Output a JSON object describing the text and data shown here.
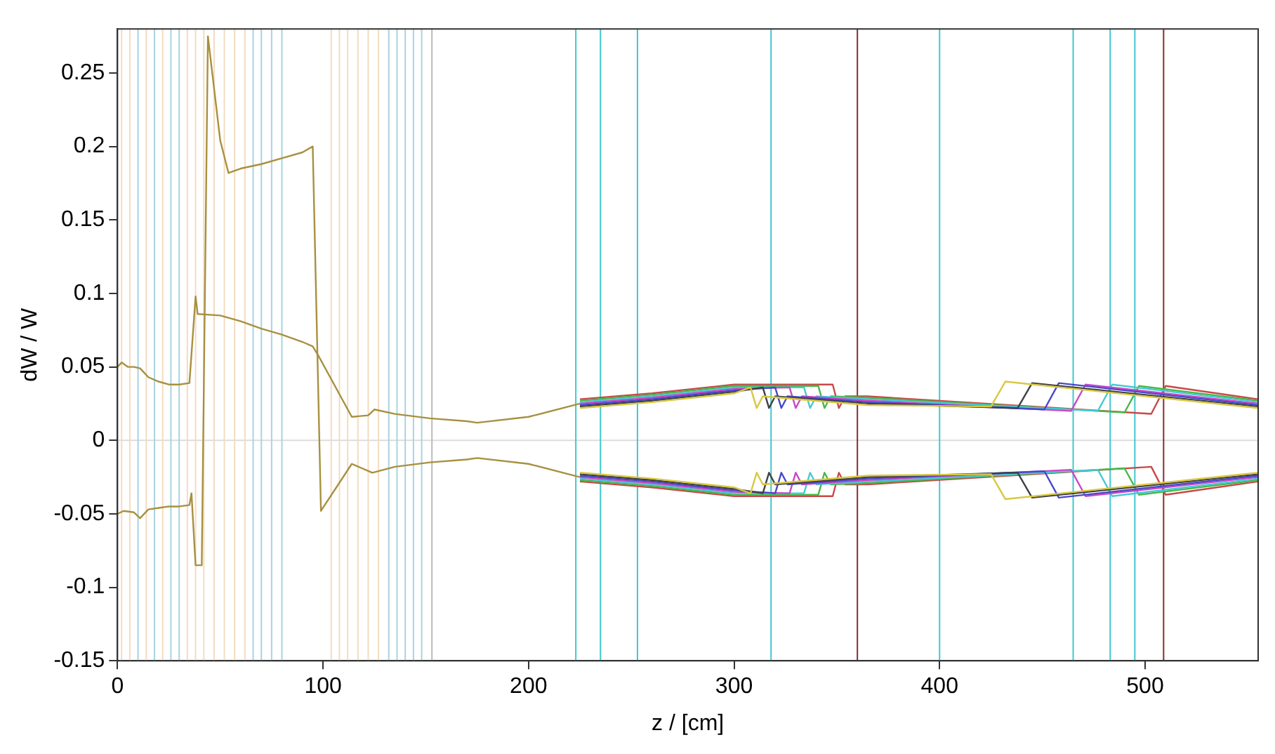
{
  "chart_data": {
    "type": "line",
    "xlabel": "z / [cm]",
    "ylabel": "dW / W",
    "xlim": [
      0,
      555
    ],
    "xticks": [
      0,
      100,
      200,
      300,
      400,
      500
    ],
    "ylim": [
      -0.15,
      0.28
    ],
    "yticks": [
      -0.15,
      -0.1,
      -0.05,
      0,
      0.05,
      0.1,
      0.15,
      0.2,
      0.25
    ],
    "grid": false,
    "legend": false,
    "marker": "none",
    "line_style": "solid",
    "series": [
      {
        "color": "#a89040",
        "x": [
          0,
          2,
          5,
          8,
          11,
          15,
          20,
          25,
          30,
          35,
          38,
          39,
          50,
          60,
          70,
          80,
          90,
          95,
          98,
          114,
          122,
          125,
          135,
          152,
          170,
          175,
          200,
          225
        ],
        "values": [
          0.05,
          0.053,
          0.05,
          0.05,
          0.049,
          0.043,
          0.04,
          0.038,
          0.038,
          0.039,
          0.098,
          0.086,
          0.085,
          0.081,
          0.076,
          0.072,
          0.067,
          0.064,
          0.057,
          0.016,
          0.017,
          0.021,
          0.018,
          0.015,
          0.013,
          0.012,
          0.016,
          0.025
        ]
      },
      {
        "color": "#a89040",
        "x": [
          0,
          3,
          8,
          11,
          15,
          20,
          25,
          30,
          35,
          36,
          38,
          41,
          44,
          50,
          54,
          60,
          70,
          80,
          90,
          95,
          99,
          114,
          124,
          135,
          152,
          170,
          175,
          200,
          225
        ],
        "values": [
          -0.05,
          -0.048,
          -0.049,
          -0.053,
          -0.047,
          -0.046,
          -0.045,
          -0.045,
          -0.044,
          -0.036,
          -0.085,
          -0.085,
          0.275,
          0.204,
          0.182,
          0.185,
          0.188,
          0.192,
          0.196,
          0.2,
          -0.048,
          -0.016,
          -0.022,
          -0.018,
          -0.015,
          -0.013,
          -0.012,
          -0.016,
          -0.025
        ]
      },
      {
        "color": "#d8c840",
        "x": [
          225,
          260,
          300,
          308,
          311,
          314,
          365,
          425,
          432,
          555
        ],
        "values": [
          0.022,
          0.026,
          0.032,
          0.036,
          0.022,
          0.03,
          0.024,
          0.023,
          0.04,
          0.022
        ]
      },
      {
        "color": "#d8c840",
        "x": [
          225,
          260,
          300,
          308,
          311,
          314,
          365,
          425,
          432,
          555
        ],
        "values": [
          -0.022,
          -0.026,
          -0.032,
          -0.036,
          -0.022,
          -0.03,
          -0.024,
          -0.023,
          -0.04,
          -0.022
        ]
      },
      {
        "color": "#404048",
        "x": [
          225,
          260,
          300,
          314,
          317,
          320,
          365,
          438,
          445,
          555
        ],
        "values": [
          0.023,
          0.027,
          0.033,
          0.036,
          0.022,
          0.03,
          0.025,
          0.022,
          0.039,
          0.023
        ]
      },
      {
        "color": "#404048",
        "x": [
          225,
          260,
          300,
          314,
          317,
          320,
          365,
          438,
          445,
          555
        ],
        "values": [
          -0.023,
          -0.027,
          -0.033,
          -0.036,
          -0.022,
          -0.03,
          -0.025,
          -0.022,
          -0.039,
          -0.023
        ]
      },
      {
        "color": "#4848c8",
        "x": [
          225,
          260,
          300,
          320,
          323,
          326,
          365,
          451,
          458,
          555
        ],
        "values": [
          0.024,
          0.028,
          0.034,
          0.036,
          0.022,
          0.03,
          0.026,
          0.021,
          0.039,
          0.024
        ]
      },
      {
        "color": "#4848c8",
        "x": [
          225,
          260,
          300,
          320,
          323,
          326,
          365,
          451,
          458,
          555
        ],
        "values": [
          -0.024,
          -0.028,
          -0.034,
          -0.036,
          -0.022,
          -0.03,
          -0.026,
          -0.021,
          -0.039,
          -0.024
        ]
      },
      {
        "color": "#c848c8",
        "x": [
          225,
          260,
          300,
          327,
          330,
          333,
          365,
          464,
          471,
          555
        ],
        "values": [
          0.025,
          0.029,
          0.035,
          0.036,
          0.022,
          0.03,
          0.027,
          0.02,
          0.038,
          0.025
        ]
      },
      {
        "color": "#c848c8",
        "x": [
          225,
          260,
          300,
          327,
          330,
          333,
          365,
          464,
          471,
          555
        ],
        "values": [
          -0.025,
          -0.029,
          -0.035,
          -0.036,
          -0.022,
          -0.03,
          -0.027,
          -0.02,
          -0.038,
          -0.025
        ]
      },
      {
        "color": "#48c8d8",
        "x": [
          225,
          260,
          300,
          334,
          337,
          340,
          365,
          477,
          484,
          555
        ],
        "values": [
          0.026,
          0.03,
          0.036,
          0.036,
          0.022,
          0.03,
          0.028,
          0.02,
          0.038,
          0.026
        ]
      },
      {
        "color": "#48c8d8",
        "x": [
          225,
          260,
          300,
          334,
          337,
          340,
          365,
          477,
          484,
          555
        ],
        "values": [
          -0.026,
          -0.03,
          -0.036,
          -0.036,
          -0.022,
          -0.03,
          -0.028,
          -0.02,
          -0.038,
          -0.026
        ]
      },
      {
        "color": "#48b848",
        "x": [
          225,
          260,
          300,
          341,
          344,
          347,
          365,
          490,
          497,
          555
        ],
        "values": [
          0.027,
          0.031,
          0.037,
          0.037,
          0.022,
          0.03,
          0.029,
          0.019,
          0.037,
          0.027
        ]
      },
      {
        "color": "#48b848",
        "x": [
          225,
          260,
          300,
          341,
          344,
          347,
          365,
          490,
          497,
          555
        ],
        "values": [
          -0.027,
          -0.031,
          -0.037,
          -0.037,
          -0.022,
          -0.03,
          -0.029,
          -0.019,
          -0.037,
          -0.027
        ]
      },
      {
        "color": "#c84848",
        "x": [
          225,
          260,
          300,
          348,
          351,
          354,
          365,
          503,
          510,
          555
        ],
        "values": [
          0.028,
          0.032,
          0.038,
          0.038,
          0.022,
          0.03,
          0.03,
          0.018,
          0.037,
          0.028
        ]
      },
      {
        "color": "#c84848",
        "x": [
          225,
          260,
          300,
          348,
          351,
          354,
          365,
          503,
          510,
          555
        ],
        "values": [
          -0.028,
          -0.032,
          -0.038,
          -0.038,
          -0.022,
          -0.03,
          -0.03,
          -0.018,
          -0.037,
          -0.028
        ]
      }
    ],
    "ref_lines": [
      {
        "axis": "y",
        "value": 0,
        "color": "#dddddd"
      },
      {
        "axis": "x",
        "value": 2,
        "color": "#f3dcc0"
      },
      {
        "axis": "x",
        "value": 6,
        "color": "#f3dcc0"
      },
      {
        "axis": "x",
        "value": 10,
        "color": "#a8d4e0"
      },
      {
        "axis": "x",
        "value": 14,
        "color": "#f3dcc0"
      },
      {
        "axis": "x",
        "value": 18,
        "color": "#a8d4e0"
      },
      {
        "axis": "x",
        "value": 22,
        "color": "#f3dcc0"
      },
      {
        "axis": "x",
        "value": 26,
        "color": "#a8d4e0"
      },
      {
        "axis": "x",
        "value": 30,
        "color": "#a8d4e0"
      },
      {
        "axis": "x",
        "value": 34,
        "color": "#f3dcc0"
      },
      {
        "axis": "x",
        "value": 38,
        "color": "#f3dcc0"
      },
      {
        "axis": "x",
        "value": 42,
        "color": "#f3dcc0"
      },
      {
        "axis": "x",
        "value": 47,
        "color": "#f3dcc0"
      },
      {
        "axis": "x",
        "value": 52,
        "color": "#f3dcc0"
      },
      {
        "axis": "x",
        "value": 57,
        "color": "#f3dcc0"
      },
      {
        "axis": "x",
        "value": 62,
        "color": "#f3dcc0"
      },
      {
        "axis": "x",
        "value": 66,
        "color": "#a8d4e0"
      },
      {
        "axis": "x",
        "value": 70,
        "color": "#a8d4e0"
      },
      {
        "axis": "x",
        "value": 75,
        "color": "#a8d4e0"
      },
      {
        "axis": "x",
        "value": 80,
        "color": "#a8d4e0"
      },
      {
        "axis": "x",
        "value": 104,
        "color": "#f3dcc0"
      },
      {
        "axis": "x",
        "value": 108,
        "color": "#f3dcc0"
      },
      {
        "axis": "x",
        "value": 112,
        "color": "#f3dcc0"
      },
      {
        "axis": "x",
        "value": 117,
        "color": "#f3dcc0"
      },
      {
        "axis": "x",
        "value": 122,
        "color": "#f3dcc0"
      },
      {
        "axis": "x",
        "value": 127,
        "color": "#f3dcc0"
      },
      {
        "axis": "x",
        "value": 132,
        "color": "#a8d4e0"
      },
      {
        "axis": "x",
        "value": 136,
        "color": "#a8d4e0"
      },
      {
        "axis": "x",
        "value": 140,
        "color": "#a8d4e0"
      },
      {
        "axis": "x",
        "value": 144,
        "color": "#a8d4e0"
      },
      {
        "axis": "x",
        "value": 148,
        "color": "#a8d4e0"
      },
      {
        "axis": "x",
        "value": 153,
        "color": "#bbbbbb"
      },
      {
        "axis": "x",
        "value": 223,
        "color": "#40c8d0"
      },
      {
        "axis": "x",
        "value": 235,
        "color": "#40c8d0"
      },
      {
        "axis": "x",
        "value": 253,
        "color": "#40c8d0"
      },
      {
        "axis": "x",
        "value": 318,
        "color": "#40c8d0"
      },
      {
        "axis": "x",
        "value": 360,
        "color": "#8b2a2a"
      },
      {
        "axis": "x",
        "value": 400,
        "color": "#40c8d0"
      },
      {
        "axis": "x",
        "value": 465,
        "color": "#40c8d0"
      },
      {
        "axis": "x",
        "value": 483,
        "color": "#40c8d0"
      },
      {
        "axis": "x",
        "value": 495,
        "color": "#40c8d0"
      },
      {
        "axis": "x",
        "value": 509,
        "color": "#8b2a2a"
      }
    ]
  }
}
